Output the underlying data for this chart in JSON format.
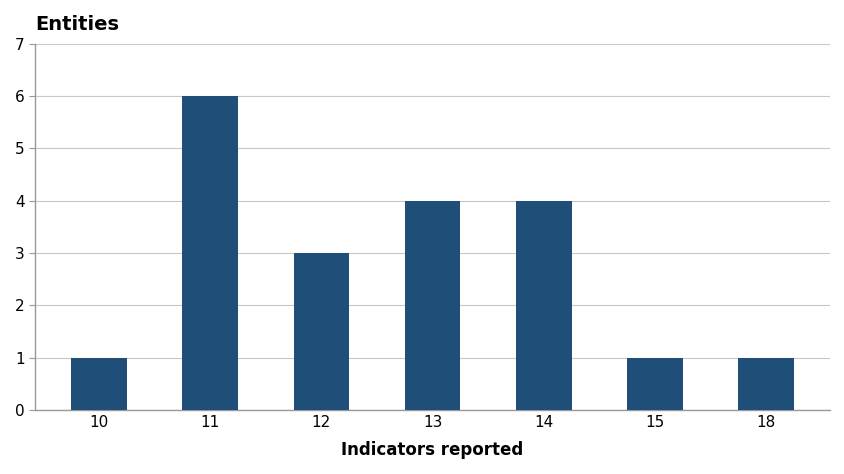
{
  "categories": [
    "10",
    "11",
    "12",
    "13",
    "14",
    "15",
    "18"
  ],
  "values": [
    1,
    6,
    3,
    4,
    4,
    1,
    1
  ],
  "bar_color": "#1F4E79",
  "title": "Entities",
  "xlabel": "Indicators reported",
  "ylim": [
    0,
    7
  ],
  "yticks": [
    0,
    1,
    2,
    3,
    4,
    5,
    6,
    7
  ],
  "title_fontsize": 14,
  "xlabel_fontsize": 12,
  "xlabel_fontweight": "bold",
  "title_fontweight": "bold",
  "tick_fontsize": 11,
  "background_color": "#ffffff",
  "grid_color": "#c8c8c8",
  "spine_color": "#999999",
  "bar_width": 0.5
}
